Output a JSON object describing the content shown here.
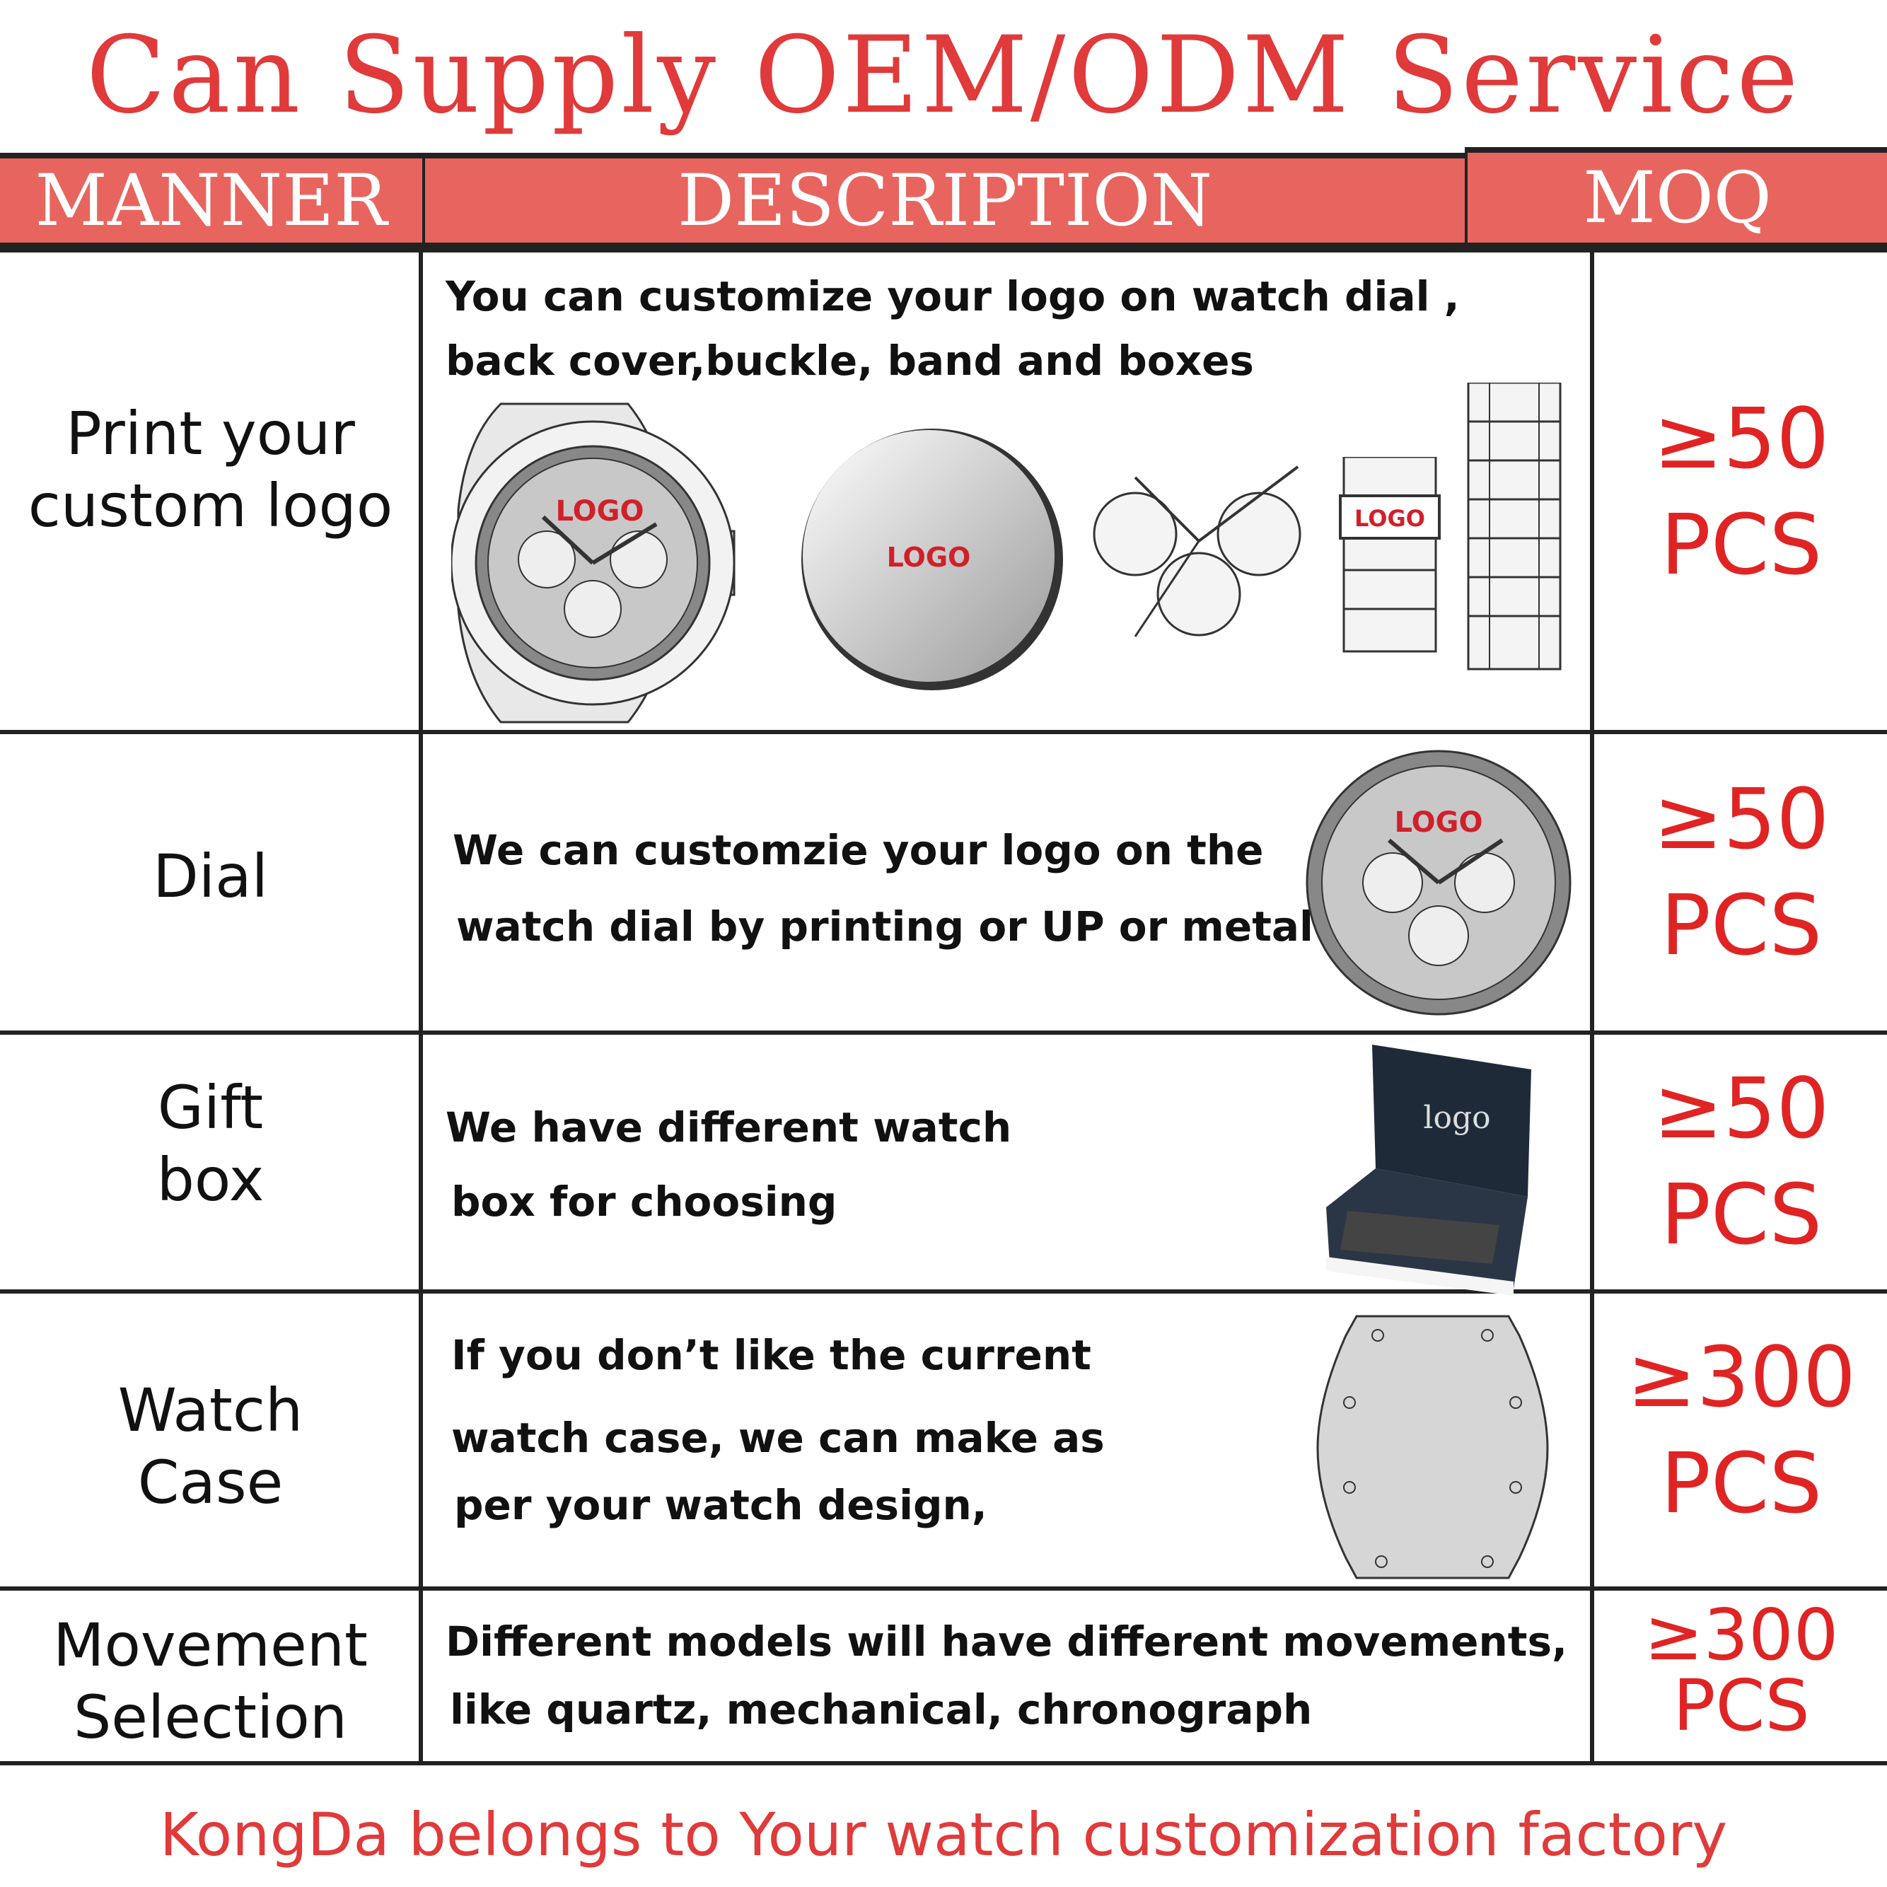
{
  "title": "Can Supply OEM/ODM Service",
  "header": {
    "manner": "MANNER",
    "description": "DESCRIPTION",
    "moq": "MOQ"
  },
  "rows": [
    {
      "manner": [
        "Print your",
        "custom logo"
      ],
      "description": [
        "You can customize your logo on watch dial ,",
        "back cover,buckle, band and boxes"
      ],
      "moq": [
        "≥50",
        "PCS"
      ],
      "logo_text": "LOGO"
    },
    {
      "manner": [
        "Dial"
      ],
      "description": [
        "We can customzie your logo on the",
        "watch dial by printing or UP or metal"
      ],
      "moq": [
        "≥50",
        "PCS"
      ],
      "logo_text": "LOGO"
    },
    {
      "manner": [
        "Gift",
        "box"
      ],
      "description": [
        "We have different watch",
        "box for choosing"
      ],
      "moq": [
        "≥50",
        "PCS"
      ],
      "logo_text": "logo"
    },
    {
      "manner": [
        "Watch",
        "Case"
      ],
      "description": [
        "If you don’t like the current",
        "watch case, we can make as",
        "per your watch design,"
      ],
      "moq": [
        "≥300",
        "PCS"
      ]
    },
    {
      "manner": [
        "Movement",
        "Selection"
      ],
      "description": [
        "Different models will have different movements,",
        "like quartz, mechanical, chronograph"
      ],
      "moq": [
        "≥300",
        "PCS"
      ]
    }
  ],
  "footer": "KongDa  belongs to Your watch customization factory",
  "colors": {
    "accent": "#e03a3a",
    "header_bg": "#e8655f",
    "border": "#222222"
  }
}
